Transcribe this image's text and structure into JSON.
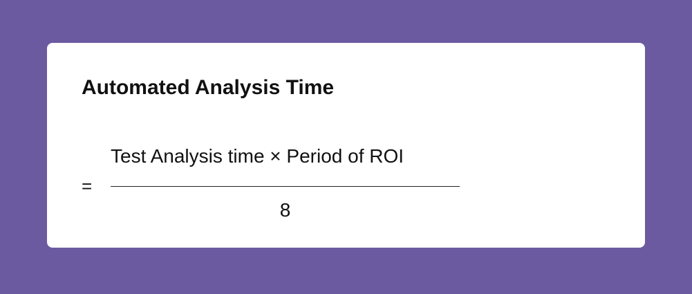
{
  "title": "Automated Analysis Time",
  "equals": "=",
  "numerator": "Test Analysis time × Period of ROI",
  "denominator": "8",
  "colors": {
    "background": "#6c5aa1",
    "card": "#ffffff"
  }
}
